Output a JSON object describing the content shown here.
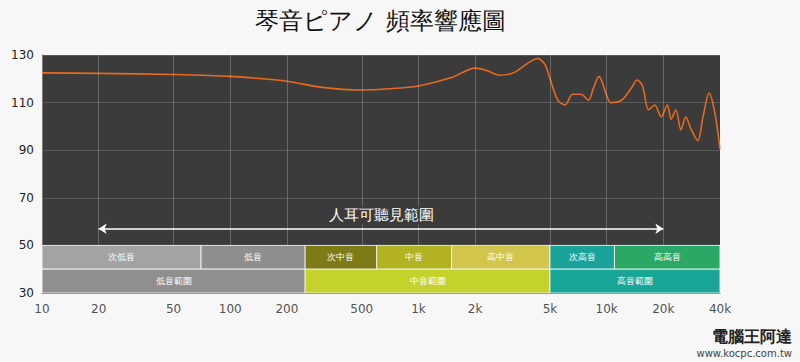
{
  "chart_data": {
    "type": "line",
    "title": "琴音ピアノ 頻率響應圖",
    "color": "#e8691e",
    "log": "x",
    "grid": true,
    "xlim": [
      10,
      40000
    ],
    "ylim": [
      30,
      130
    ],
    "xticks": [
      10,
      20,
      50,
      100,
      200,
      500,
      {
        "value": 1000,
        "label": "1k"
      },
      {
        "value": 2000,
        "label": "2k"
      },
      {
        "value": 5000,
        "label": "5k"
      },
      {
        "value": 10000,
        "label": "10k"
      },
      {
        "value": 20000,
        "label": "20k"
      },
      {
        "value": 40000,
        "label": "40k"
      }
    ],
    "yticks": [
      30,
      50,
      70,
      90,
      110,
      130
    ],
    "x": [
      10,
      20,
      50,
      100,
      200,
      300,
      500,
      700,
      1000,
      1500,
      2000,
      2300,
      2700,
      3200,
      3800,
      4300,
      4700,
      5000,
      5500,
      6000,
      6600,
      7300,
      8000,
      8500,
      9100,
      10000,
      10500,
      12000,
      13500,
      14500,
      15500,
      16700,
      18000,
      19500,
      21000,
      22000,
      23300,
      24800,
      26300,
      28000,
      30500,
      32500,
      35000,
      37500,
      40000
    ],
    "values": [
      122.5,
      122.3,
      121.8,
      121,
      119,
      116.5,
      115.3,
      115.8,
      117,
      120.5,
      124.5,
      123.5,
      121.5,
      122.5,
      126.5,
      128.5,
      126,
      120,
      111,
      109,
      113.5,
      113.5,
      111,
      116,
      121,
      113,
      110,
      111,
      116,
      119.5,
      117,
      107,
      109,
      104,
      109,
      103,
      107,
      98.5,
      104,
      99,
      94,
      104,
      114,
      106,
      90.5
    ],
    "annotations": [
      {
        "text": "人耳可聽見範圍",
        "x": [
          20,
          20000
        ],
        "y": 57
      }
    ],
    "bands": [
      {
        "label": "次低音",
        "x": [
          10,
          70
        ],
        "y": [
          40,
          50
        ],
        "color": "#a3a3a3"
      },
      {
        "label": "低音",
        "x": [
          70,
          250
        ],
        "y": [
          40,
          50
        ],
        "color": "#8e8e8e"
      },
      {
        "label": "次中音",
        "x": [
          250,
          600
        ],
        "y": [
          40,
          50
        ],
        "color": "#7d7b16"
      },
      {
        "label": "中音",
        "x": [
          600,
          1500
        ],
        "y": [
          40,
          50
        ],
        "color": "#b3b222"
      },
      {
        "label": "高中音",
        "x": [
          1500,
          5000
        ],
        "y": [
          40,
          50
        ],
        "color": "#d2c54c"
      },
      {
        "label": "次高音",
        "x": [
          5000,
          11000
        ],
        "y": [
          40,
          50
        ],
        "color": "#1aa39b"
      },
      {
        "label": "高高音",
        "x": [
          11000,
          40000
        ],
        "y": [
          40,
          50
        ],
        "color": "#2aa866"
      },
      {
        "label": "低音範圍",
        "x": [
          10,
          250
        ],
        "y": [
          30,
          40
        ],
        "color": "#8f8f8f"
      },
      {
        "label": "中音範圍",
        "x": [
          250,
          5000
        ],
        "y": [
          30,
          40
        ],
        "color": "#c6d22c"
      },
      {
        "label": "高音範圍",
        "x": [
          5000,
          40000
        ],
        "y": [
          30,
          40
        ],
        "color": "#17a697"
      }
    ],
    "watermark": [
      "電腦王阿達",
      "www.kocpc.com.tw"
    ]
  }
}
